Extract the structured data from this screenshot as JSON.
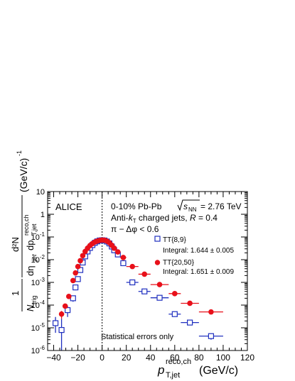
{
  "chart_data": {
    "type": "scatter",
    "title": "",
    "experiment_label": "ALICE",
    "annotation_lines": [
      "0-10% Pb-Pb √sNN = 2.76 TeV",
      "Anti-kT charged jets, R = 0.4",
      "π − Δφ < 0.6"
    ],
    "ann_line1": {
      "pre": "0-10% Pb-Pb ",
      "sqrt_sub": "NN",
      "post": " = 2.76 TeV"
    },
    "ann_line2": {
      "pre": "Anti-",
      "k": "k",
      "ksub": "T",
      "mid": " charged jets, ",
      "R": "R",
      "post": " = 0.4"
    },
    "ann_line3": "π − Δφ < 0.6",
    "footnote": "Statistical errors only",
    "xlabel": "p T,jet reco,ch (GeV/c)",
    "xlabel_parts": {
      "p": "p",
      "sup": "reco,ch",
      "sub": "T,jet",
      "unit": "(GeV/c)"
    },
    "ylabel": "1/N_trig d²N/dp_T,jet^reco,ch dη_jet (GeV/c)^-1",
    "ylabel_parts": {
      "one": "1",
      "N": "N",
      "trig": "trig",
      "eta": "dη",
      "jet": "jet",
      "dp": "dp",
      "reco": "reco,ch",
      "tjet": "T,jet",
      "num": "d²N",
      "unit": "(GeV/c)",
      "exp": "-1"
    },
    "xlim": [
      -45,
      120
    ],
    "ylim": [
      1e-06,
      10
    ],
    "yscale": "log",
    "x_ticks": [
      "−40",
      "−20",
      "0",
      "20",
      "40",
      "60",
      "80",
      "100",
      "120"
    ],
    "y_ticks": [
      "10⁻⁶",
      "10⁻⁵",
      "10⁻⁴",
      "10⁻³",
      "10⁻²",
      "10⁻¹",
      "1",
      "10"
    ],
    "y_tick_parts": [
      {
        "base": "10",
        "exp": "-6"
      },
      {
        "base": "10",
        "exp": "-5"
      },
      {
        "base": "10",
        "exp": "-4"
      },
      {
        "base": "10",
        "exp": "-3"
      },
      {
        "base": "10",
        "exp": "-2"
      },
      {
        "base": "10",
        "exp": "-1"
      },
      {
        "base": "1",
        "exp": ""
      },
      {
        "base": "10",
        "exp": ""
      }
    ],
    "reference_line": {
      "x": 0,
      "style": "dotted"
    },
    "legend_placement": "right",
    "series": [
      {
        "name": "TT{8,9}",
        "integral": "Integral: 1.644 ± 0.005",
        "marker": "open-square",
        "color": "#1f2fbf",
        "points": [
          {
            "x": -38.5,
            "y": 1.6e-05,
            "xerr": 1.5,
            "ylo": 6e-06,
            "yhi": 3e-05
          },
          {
            "x": -33.5,
            "y": 8e-06,
            "xerr": 1.5,
            "ylo": 1e-06,
            "yhi": 2.5e-05
          },
          {
            "x": -28.5,
            "y": 6e-05,
            "xerr": 1.5,
            "ylo": 3e-05,
            "yhi": 9e-05
          },
          {
            "x": -24,
            "y": 0.0002,
            "xerr": 1,
            "ylo": 0.00014,
            "yhi": 0.00026
          },
          {
            "x": -22,
            "y": 0.0006,
            "xerr": 1,
            "ylo": 0.00045,
            "yhi": 0.00075
          },
          {
            "x": -20,
            "y": 0.0014,
            "xerr": 1,
            "ylo": 0.0012,
            "yhi": 0.0016
          },
          {
            "x": -18,
            "y": 0.0035,
            "xerr": 1,
            "ylo": 0.0032,
            "yhi": 0.0038
          },
          {
            "x": -16,
            "y": 0.0075,
            "xerr": 1,
            "ylo": 0.007,
            "yhi": 0.008
          },
          {
            "x": -14,
            "y": 0.014,
            "xerr": 1,
            "ylo": 0.013,
            "yhi": 0.015
          },
          {
            "x": -12,
            "y": 0.023,
            "xerr": 1,
            "ylo": 0.022,
            "yhi": 0.024
          },
          {
            "x": -10,
            "y": 0.033,
            "xerr": 1,
            "ylo": 0.032,
            "yhi": 0.034
          },
          {
            "x": -8,
            "y": 0.044,
            "xerr": 1,
            "ylo": 0.043,
            "yhi": 0.045
          },
          {
            "x": -6,
            "y": 0.055,
            "xerr": 1,
            "ylo": 0.054,
            "yhi": 0.056
          },
          {
            "x": -4,
            "y": 0.064,
            "xerr": 1,
            "ylo": 0.063,
            "yhi": 0.065
          },
          {
            "x": -2,
            "y": 0.07,
            "xerr": 1,
            "ylo": 0.069,
            "yhi": 0.071
          },
          {
            "x": 0,
            "y": 0.072,
            "xerr": 1,
            "ylo": 0.071,
            "yhi": 0.073
          },
          {
            "x": 2,
            "y": 0.07,
            "xerr": 1,
            "ylo": 0.069,
            "yhi": 0.071
          },
          {
            "x": 4,
            "y": 0.063,
            "xerr": 1,
            "ylo": 0.062,
            "yhi": 0.064
          },
          {
            "x": 6,
            "y": 0.052,
            "xerr": 1,
            "ylo": 0.051,
            "yhi": 0.053
          },
          {
            "x": 8,
            "y": 0.038,
            "xerr": 1,
            "ylo": 0.037,
            "yhi": 0.039
          },
          {
            "x": 10,
            "y": 0.026,
            "xerr": 1,
            "ylo": 0.025,
            "yhi": 0.027
          },
          {
            "x": 13,
            "y": 0.017,
            "xerr": 2,
            "ylo": 0.0165,
            "yhi": 0.0175
          },
          {
            "x": 17.5,
            "y": 0.007,
            "xerr": 2.5,
            "ylo": 0.0067,
            "yhi": 0.0073
          },
          {
            "x": 25,
            "y": 0.001,
            "xerr": 5,
            "ylo": 0.00095,
            "yhi": 0.00105
          },
          {
            "x": 35,
            "y": 0.0004,
            "xerr": 5,
            "ylo": 0.00037,
            "yhi": 0.00043
          },
          {
            "x": 47.5,
            "y": 0.00021,
            "xerr": 7.5,
            "ylo": 0.00019,
            "yhi": 0.00023
          },
          {
            "x": 60,
            "y": 4e-05,
            "xerr": 5,
            "ylo": 3.5e-05,
            "yhi": 4.5e-05
          },
          {
            "x": 72.5,
            "y": 1.7e-05,
            "xerr": 7.5,
            "ylo": 1.4e-05,
            "yhi": 2e-05
          },
          {
            "x": 90,
            "y": 4.3e-06,
            "xerr": 10,
            "ylo": 3e-06,
            "yhi": 5.6e-06
          }
        ]
      },
      {
        "name": "TT{20,50}",
        "integral": "Integral: 1.651 ± 0.009",
        "marker": "filled-circle",
        "color": "#e8101a",
        "points": [
          {
            "x": -33.5,
            "y": 4e-05,
            "xerr": 1.5,
            "ylo": 2.5e-05,
            "yhi": 5.5e-05
          },
          {
            "x": -30.5,
            "y": 9e-05,
            "xerr": 1.5,
            "ylo": 7e-05,
            "yhi": 0.00011
          },
          {
            "x": -27.5,
            "y": 0.00024,
            "xerr": 1.5,
            "ylo": 0.0002,
            "yhi": 0.00028
          },
          {
            "x": -24,
            "y": 0.0012,
            "xerr": 1,
            "ylo": 0.00105,
            "yhi": 0.00135
          },
          {
            "x": -22,
            "y": 0.0026,
            "xerr": 1,
            "ylo": 0.0024,
            "yhi": 0.0028
          },
          {
            "x": -20,
            "y": 0.005,
            "xerr": 1,
            "ylo": 0.0047,
            "yhi": 0.0053
          },
          {
            "x": -18,
            "y": 0.009,
            "xerr": 1,
            "ylo": 0.0086,
            "yhi": 0.0094
          },
          {
            "x": -16,
            "y": 0.015,
            "xerr": 1,
            "ylo": 0.0145,
            "yhi": 0.0155
          },
          {
            "x": -14,
            "y": 0.023,
            "xerr": 1,
            "ylo": 0.022,
            "yhi": 0.024
          },
          {
            "x": -12,
            "y": 0.032,
            "xerr": 1,
            "ylo": 0.031,
            "yhi": 0.033
          },
          {
            "x": -10,
            "y": 0.042,
            "xerr": 1,
            "ylo": 0.041,
            "yhi": 0.043
          },
          {
            "x": -8,
            "y": 0.051,
            "xerr": 1,
            "ylo": 0.05,
            "yhi": 0.052
          },
          {
            "x": -6,
            "y": 0.06,
            "xerr": 1,
            "ylo": 0.059,
            "yhi": 0.061
          },
          {
            "x": -4,
            "y": 0.066,
            "xerr": 1,
            "ylo": 0.065,
            "yhi": 0.067
          },
          {
            "x": -2,
            "y": 0.071,
            "xerr": 1,
            "ylo": 0.07,
            "yhi": 0.072
          },
          {
            "x": 0,
            "y": 0.073,
            "xerr": 1,
            "ylo": 0.072,
            "yhi": 0.074
          },
          {
            "x": 2,
            "y": 0.072,
            "xerr": 1,
            "ylo": 0.071,
            "yhi": 0.073
          },
          {
            "x": 4,
            "y": 0.066,
            "xerr": 1,
            "ylo": 0.065,
            "yhi": 0.067
          },
          {
            "x": 6,
            "y": 0.056,
            "xerr": 1,
            "ylo": 0.055,
            "yhi": 0.057
          },
          {
            "x": 8,
            "y": 0.043,
            "xerr": 1,
            "ylo": 0.042,
            "yhi": 0.044
          },
          {
            "x": 10,
            "y": 0.032,
            "xerr": 1,
            "ylo": 0.031,
            "yhi": 0.033
          },
          {
            "x": 13,
            "y": 0.022,
            "xerr": 2,
            "ylo": 0.0215,
            "yhi": 0.0225
          },
          {
            "x": 17.5,
            "y": 0.0125,
            "xerr": 2.5,
            "ylo": 0.012,
            "yhi": 0.013
          },
          {
            "x": 25,
            "y": 0.005,
            "xerr": 5,
            "ylo": 0.0048,
            "yhi": 0.0052
          },
          {
            "x": 35,
            "y": 0.0023,
            "xerr": 5,
            "ylo": 0.0022,
            "yhi": 0.0024
          },
          {
            "x": 47.5,
            "y": 0.0008,
            "xerr": 7.5,
            "ylo": 0.00076,
            "yhi": 0.00084
          },
          {
            "x": 60,
            "y": 0.00032,
            "xerr": 5,
            "ylo": 0.0003,
            "yhi": 0.00034
          },
          {
            "x": 72.5,
            "y": 0.00012,
            "xerr": 7.5,
            "ylo": 0.00011,
            "yhi": 0.00013
          },
          {
            "x": 90,
            "y": 5e-05,
            "xerr": 10,
            "ylo": 4.5e-05,
            "yhi": 5.5e-05
          }
        ]
      }
    ]
  }
}
